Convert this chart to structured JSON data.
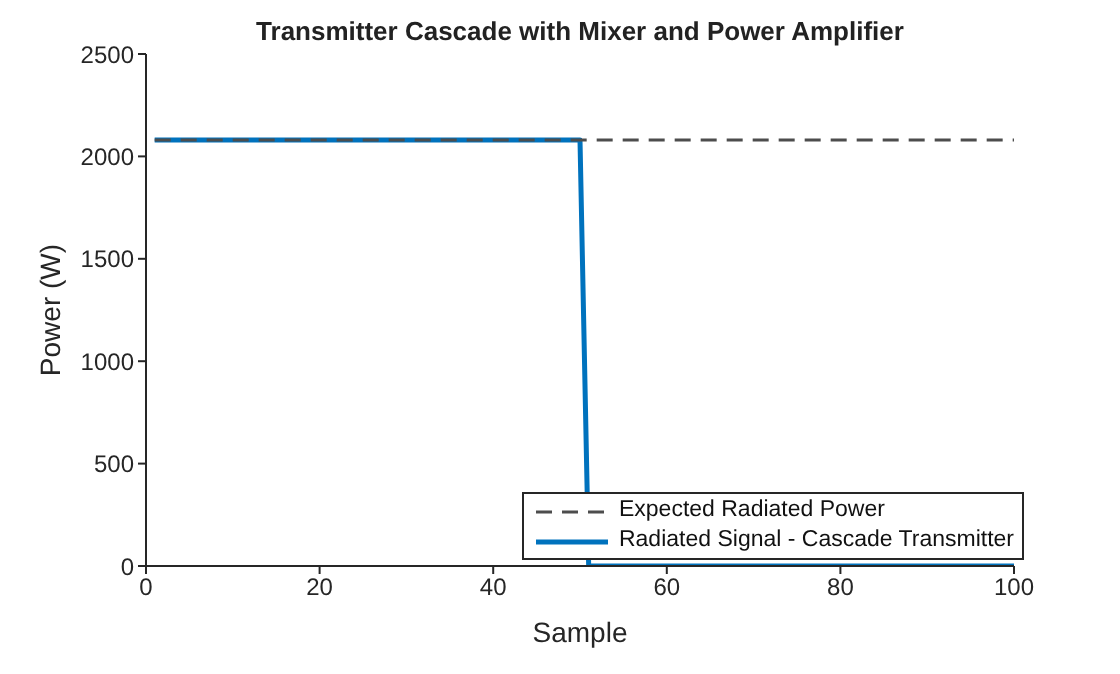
{
  "chart_data": {
    "type": "line",
    "title": "Transmitter Cascade with Mixer and Power Amplifier",
    "xlabel": "Sample",
    "ylabel": "Power (W)",
    "xlim": [
      0,
      100
    ],
    "xticks": [
      0,
      20,
      40,
      60,
      80,
      100
    ],
    "ylim": [
      0,
      2500
    ],
    "yticks": [
      0,
      500,
      1000,
      1500,
      2000,
      2500
    ],
    "series": [
      {
        "name": "Expected Radiated Power",
        "color": "#4d4d4d",
        "line_style": "dashed",
        "x": [
          1,
          100
        ],
        "values": [
          2080,
          2080
        ]
      },
      {
        "name": "Radiated Signal - Cascade Transmitter",
        "color": "#0072bd",
        "line_style": "solid",
        "x": [
          1,
          50,
          51,
          100
        ],
        "values": [
          2080,
          2080,
          0,
          0
        ]
      }
    ],
    "grid": false,
    "legend": "bottom right",
    "marker": "none"
  }
}
